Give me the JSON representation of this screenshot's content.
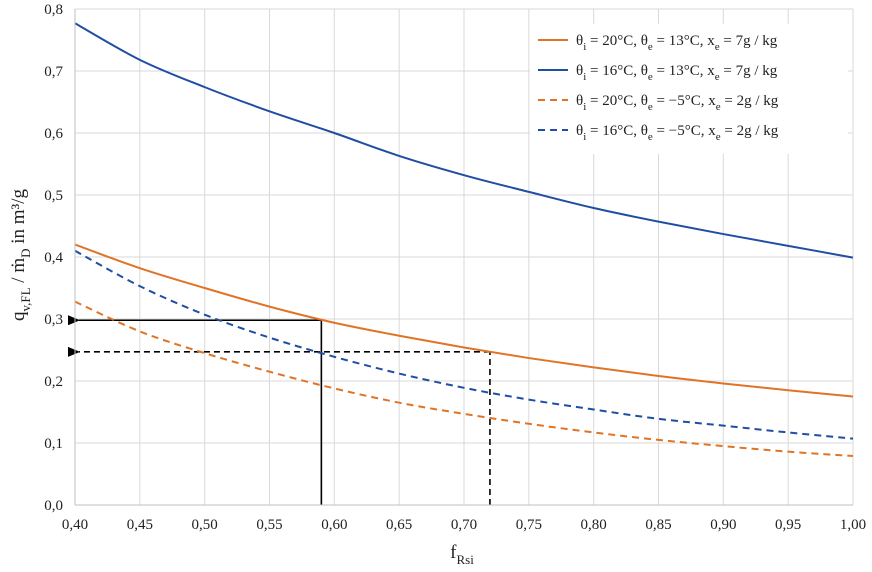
{
  "chart_data": {
    "type": "line",
    "title": "",
    "xlabel": "f_Rsi",
    "xlabel_main": "f",
    "xlabel_sub": "Rsi",
    "ylabel": "q_v,FL / ṁ_D in m³/g",
    "ylabel_main": "q",
    "ylabel_sub": "v,FL",
    "ylabel_rest": " / ṁ",
    "ylabel_sub2": "D",
    "ylabel_unit": " in m³/g",
    "xlim": [
      0.4,
      1.0
    ],
    "ylim": [
      0.0,
      0.8
    ],
    "grid": true,
    "legend_position": "top-right",
    "x_ticks": [
      0.4,
      0.45,
      0.5,
      0.55,
      0.6,
      0.65,
      0.7,
      0.75,
      0.8,
      0.85,
      0.9,
      0.95,
      1.0
    ],
    "x_tick_labels": [
      "0,40",
      "0,45",
      "0,50",
      "0,55",
      "0,60",
      "0,65",
      "0,70",
      "0,75",
      "0,80",
      "0,85",
      "0,90",
      "0,95",
      "1,00"
    ],
    "y_ticks": [
      0.0,
      0.1,
      0.2,
      0.3,
      0.4,
      0.5,
      0.6,
      0.7,
      0.8
    ],
    "y_tick_labels": [
      "0,0",
      "0,1",
      "0,2",
      "0,3",
      "0,4",
      "0,5",
      "0,6",
      "0,7",
      "0,8"
    ],
    "series": [
      {
        "name": "θi = 20°C, θe = 13°C, xe = 7g / kg",
        "legend_parts": [
          "θ",
          "i",
          " = 20°C, θ",
          "e",
          " = 13°C, x",
          "e",
          " = 7g / kg"
        ],
        "color": "#E07426",
        "style": "solid",
        "x": [
          0.4,
          0.45,
          0.5,
          0.55,
          0.6,
          0.65,
          0.7,
          0.75,
          0.8,
          0.85,
          0.9,
          0.95,
          1.0
        ],
        "y": [
          0.42,
          0.382,
          0.35,
          0.32,
          0.294,
          0.273,
          0.254,
          0.237,
          0.222,
          0.208,
          0.196,
          0.185,
          0.175
        ]
      },
      {
        "name": "θi = 16°C, θe = 13°C, xe = 7g / kg",
        "legend_parts": [
          "θ",
          "i",
          " = 16°C, θ",
          "e",
          " = 13°C, x",
          "e",
          " = 7g / kg"
        ],
        "color": "#1F4EA3",
        "style": "solid",
        "x": [
          0.4,
          0.45,
          0.5,
          0.55,
          0.6,
          0.65,
          0.7,
          0.75,
          0.8,
          0.85,
          0.9,
          0.95,
          1.0
        ],
        "y": [
          0.777,
          0.718,
          0.674,
          0.635,
          0.6,
          0.563,
          0.532,
          0.505,
          0.479,
          0.457,
          0.437,
          0.418,
          0.399
        ]
      },
      {
        "name": "θi = 20°C, θe = −5°C, xe = 2g / kg",
        "legend_parts": [
          "θ",
          "i",
          " = 20°C, θ",
          "e",
          " = −5°C, x",
          "e",
          " = 2g / kg"
        ],
        "color": "#E07426",
        "style": "dashed",
        "x": [
          0.4,
          0.45,
          0.5,
          0.55,
          0.6,
          0.65,
          0.7,
          0.75,
          0.8,
          0.85,
          0.9,
          0.95,
          1.0
        ],
        "y": [
          0.328,
          0.28,
          0.245,
          0.215,
          0.188,
          0.165,
          0.147,
          0.131,
          0.117,
          0.105,
          0.095,
          0.086,
          0.079
        ]
      },
      {
        "name": "θi = 16°C, θe = −5°C, xe = 2g / kg",
        "legend_parts": [
          "θ",
          "i",
          " = 16°C, θ",
          "e",
          " = −5°C, x",
          "e",
          " = 2g / kg"
        ],
        "color": "#1F4EA3",
        "style": "dashed",
        "x": [
          0.4,
          0.45,
          0.5,
          0.55,
          0.6,
          0.65,
          0.7,
          0.75,
          0.8,
          0.85,
          0.9,
          0.95,
          1.0
        ],
        "y": [
          0.41,
          0.353,
          0.307,
          0.27,
          0.239,
          0.212,
          0.189,
          0.17,
          0.154,
          0.139,
          0.128,
          0.117,
          0.107
        ]
      }
    ],
    "annotations": [
      {
        "name": "reading-solid",
        "style": "solid",
        "x": 0.59,
        "y": 0.298
      },
      {
        "name": "reading-dashed",
        "style": "dashed",
        "x": 0.72,
        "y": 0.247
      }
    ]
  }
}
